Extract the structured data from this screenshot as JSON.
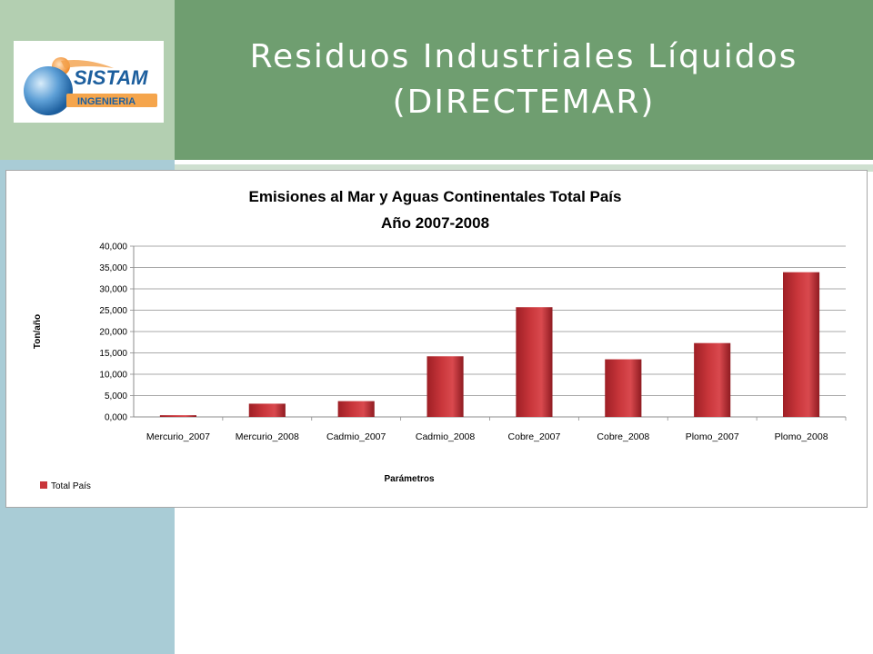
{
  "slide": {
    "title_line1": "Residuos Industriales Líquidos",
    "title_line2": "(DIRECTEMAR)"
  },
  "logo": {
    "brand": "SISTAM",
    "subtitle": "INGENIERIA"
  },
  "chart_data": {
    "type": "bar",
    "title": [
      "Emisiones al Mar y Aguas Continentales Total País",
      "Año 2007-2008"
    ],
    "xlabel": "Parámetros",
    "ylabel": "Ton/año",
    "categories": [
      "Mercurio_2007",
      "Mercurio_2008",
      "Cadmio_2007",
      "Cadmio_2008",
      "Cobre_2007",
      "Cobre_2008",
      "Plomo_2007",
      "Plomo_2008"
    ],
    "series": [
      {
        "name": "Total País",
        "values": [
          400,
          3100,
          3700,
          14200,
          25700,
          13500,
          17300,
          33900
        ]
      }
    ],
    "ylim": [
      0,
      40000
    ],
    "yticks": [
      "0,000",
      "5,000",
      "10,000",
      "15,000",
      "20,000",
      "25,000",
      "30,000",
      "35,000",
      "40,000"
    ],
    "grid": true,
    "legend_position": "bottom-left",
    "bar_color": "#c9363b"
  }
}
